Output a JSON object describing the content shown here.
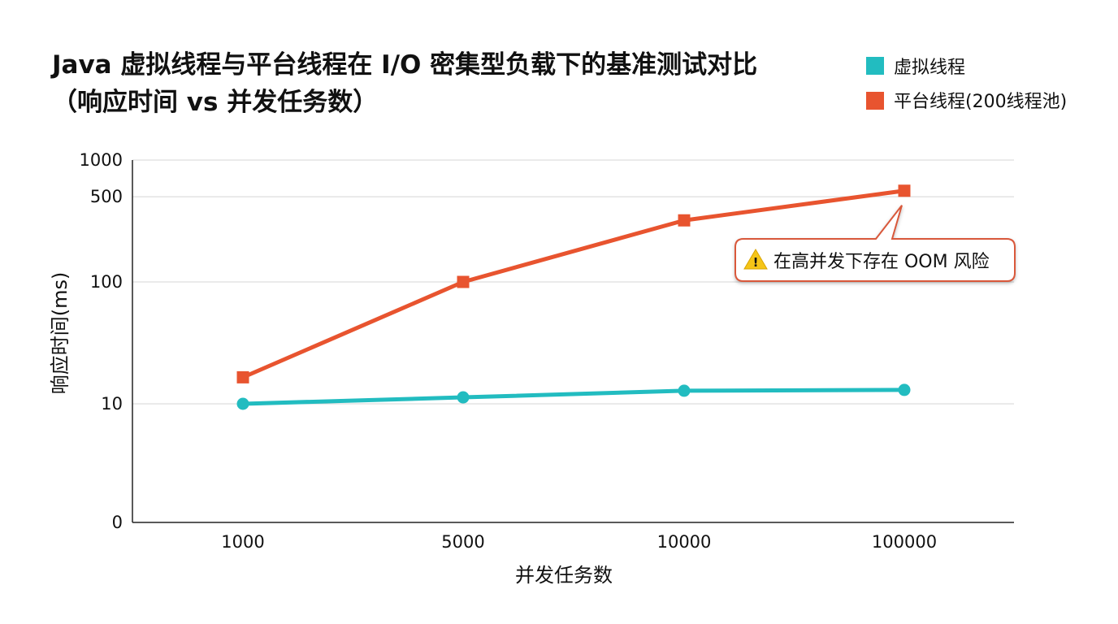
{
  "chart_data": {
    "type": "line",
    "title_lines": [
      "Java 虚拟线程与平台线程在 I/O 密集型负载下的基准测试对比",
      "（响应时间 vs 并发任务数）"
    ],
    "xlabel": "并发任务数",
    "ylabel": "响应时间(ms)",
    "categories": [
      "1000",
      "5000",
      "10000",
      "100000"
    ],
    "y_scale": "log",
    "y_ticks": [
      {
        "label": "1000",
        "value": 1000
      },
      {
        "label": "500",
        "value": 500
      },
      {
        "label": "100",
        "value": 100
      },
      {
        "label": "10",
        "value": 10
      },
      {
        "label": "0",
        "value": 0
      }
    ],
    "grid": true,
    "legend_position": "top-right",
    "series": [
      {
        "name": "虚拟线程",
        "values": [
          10,
          11.3,
          12.8,
          13
        ],
        "color": "#22bcc0",
        "marker": "circle"
      },
      {
        "name": "平台线程(200线程池)",
        "values": [
          16.5,
          100,
          320,
          560
        ],
        "color": "#e8542f",
        "marker": "square"
      }
    ],
    "annotation": {
      "icon": "warning-icon",
      "text": "在高并发下存在 OOM 风险",
      "series_index": 1,
      "point_index": 3,
      "border_color": "#d9583b"
    }
  }
}
